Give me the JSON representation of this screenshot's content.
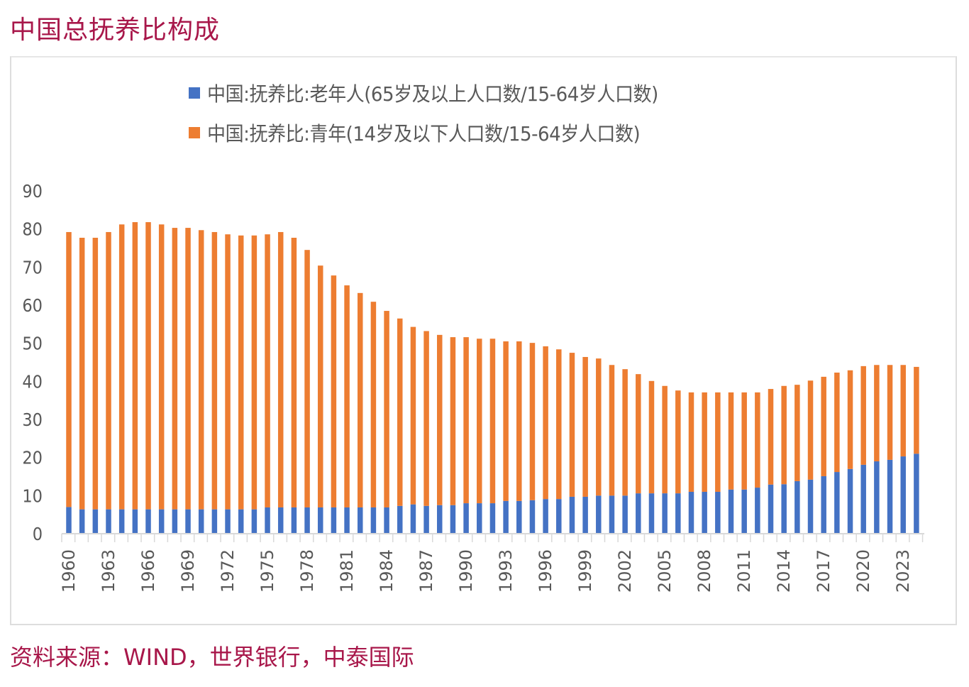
{
  "title": "中国总抚养比构成",
  "source": "资料来源：WIND，世界银行，中泰国际",
  "colors": {
    "title": "#A8174A",
    "elderly": "#4472C4",
    "youth": "#ED7D31",
    "axis": "#d9d9d9",
    "tick_text": "#595959"
  },
  "chart_data": {
    "type": "bar",
    "stacked": true,
    "title": "中国总抚养比构成",
    "xlabel": "",
    "ylabel": "",
    "ylim": [
      0,
      90
    ],
    "yticks": [
      0,
      10,
      20,
      30,
      40,
      50,
      60,
      70,
      80,
      90
    ],
    "grid": false,
    "legend_position": "top-center",
    "x": [
      1960,
      1961,
      1962,
      1963,
      1964,
      1965,
      1966,
      1967,
      1968,
      1969,
      1970,
      1971,
      1972,
      1973,
      1974,
      1975,
      1976,
      1977,
      1978,
      1979,
      1980,
      1981,
      1982,
      1983,
      1984,
      1985,
      1986,
      1987,
      1988,
      1989,
      1990,
      1991,
      1992,
      1993,
      1994,
      1995,
      1996,
      1997,
      1998,
      1999,
      2000,
      2001,
      2002,
      2003,
      2004,
      2005,
      2006,
      2007,
      2008,
      2009,
      2010,
      2011,
      2012,
      2013,
      2014,
      2015,
      2016,
      2017,
      2018,
      2019,
      2020,
      2021,
      2022,
      2023,
      2024
    ],
    "xtick_labels": [
      "1960",
      "1963",
      "1966",
      "1969",
      "1972",
      "1975",
      "1978",
      "1981",
      "1984",
      "1987",
      "1990",
      "1993",
      "1996",
      "1999",
      "2002",
      "2005",
      "2008",
      "2011",
      "2014",
      "2017",
      "2020",
      "2023"
    ],
    "series": [
      {
        "name": "中国:抚养比:老年人(65岁及以上人口数/15-64岁人口数)",
        "color": "#4472C4",
        "values": [
          7.0,
          6.4,
          6.4,
          6.4,
          6.4,
          6.4,
          6.4,
          6.4,
          6.4,
          6.4,
          6.4,
          6.4,
          6.4,
          6.4,
          6.4,
          6.9,
          6.9,
          6.9,
          6.9,
          6.9,
          6.9,
          6.9,
          6.9,
          6.9,
          6.9,
          7.3,
          7.7,
          7.3,
          7.5,
          7.5,
          8.0,
          8.0,
          8.0,
          8.6,
          8.6,
          8.8,
          9.1,
          9.1,
          9.7,
          9.7,
          10.0,
          10.0,
          10.0,
          10.6,
          10.6,
          10.6,
          10.6,
          11.0,
          11.0,
          11.0,
          11.6,
          11.6,
          12.1,
          12.9,
          13.0,
          13.8,
          14.2,
          15.1,
          16.2,
          17.0,
          18.1,
          19.0,
          19.4,
          20.3,
          21.0
        ]
      },
      {
        "name": "中国:抚养比:青年(14岁及以下人口数/15-64岁人口数)",
        "color": "#ED7D31",
        "values": [
          72.2,
          71.3,
          71.3,
          72.8,
          74.8,
          75.4,
          75.4,
          74.8,
          73.9,
          73.9,
          73.3,
          72.8,
          72.2,
          71.9,
          71.9,
          71.7,
          72.3,
          70.8,
          67.6,
          63.5,
          60.9,
          58.3,
          56.3,
          54.0,
          51.6,
          49.2,
          46.6,
          45.9,
          44.7,
          44.1,
          43.6,
          43.2,
          43.2,
          41.9,
          41.9,
          41.3,
          40.1,
          39.3,
          37.8,
          36.7,
          36.0,
          34.3,
          33.2,
          31.3,
          29.5,
          28.2,
          27.0,
          26.1,
          26.1,
          26.1,
          25.5,
          25.5,
          25.0,
          25.1,
          25.8,
          25.3,
          26.0,
          26.1,
          26.1,
          25.9,
          25.9,
          25.3,
          24.9,
          24.0,
          22.8
        ]
      }
    ]
  }
}
